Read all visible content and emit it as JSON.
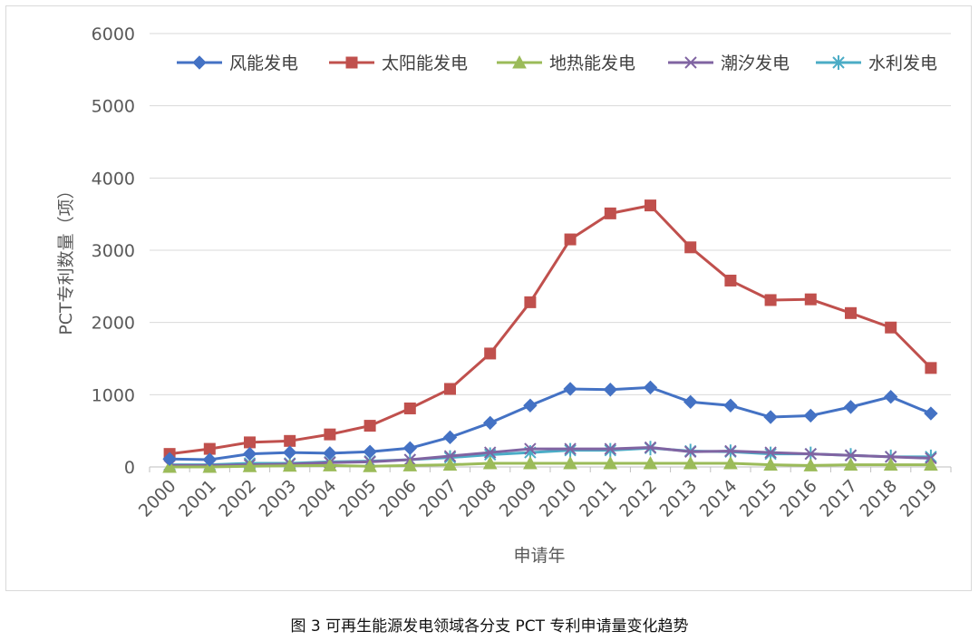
{
  "chart_data": {
    "type": "line",
    "title": "",
    "xlabel": "申请年",
    "ylabel": "PCT专利数量（项）",
    "ylim": [
      0,
      6000
    ],
    "yticks": [
      0,
      1000,
      2000,
      3000,
      4000,
      5000,
      6000
    ],
    "grid": true,
    "legend_position": "top",
    "categories": [
      "2000",
      "2001",
      "2002",
      "2003",
      "2004",
      "2005",
      "2006",
      "2007",
      "2008",
      "2009",
      "2010",
      "2011",
      "2012",
      "2013",
      "2014",
      "2015",
      "2016",
      "2017",
      "2018",
      "2019"
    ],
    "series": [
      {
        "name": "风能发电",
        "color": "#4472c4",
        "marker": "diamond",
        "values": [
          110,
          100,
          180,
          200,
          190,
          210,
          260,
          410,
          610,
          850,
          1080,
          1070,
          1100,
          900,
          850,
          690,
          710,
          830,
          970,
          740
        ]
      },
      {
        "name": "太阳能发电",
        "color": "#c0504d",
        "marker": "square",
        "values": [
          180,
          250,
          340,
          360,
          450,
          570,
          810,
          1080,
          1570,
          2280,
          3150,
          3510,
          3620,
          3040,
          2580,
          2310,
          2320,
          2130,
          1930,
          1370
        ]
      },
      {
        "name": "地热能发电",
        "color": "#9bbb59",
        "marker": "triangle",
        "values": [
          0,
          0,
          10,
          15,
          20,
          10,
          20,
          30,
          50,
          50,
          50,
          50,
          50,
          50,
          50,
          30,
          20,
          30,
          30,
          30
        ]
      },
      {
        "name": "潮汐发电",
        "color": "#8064a2",
        "marker": "x",
        "values": [
          20,
          20,
          30,
          40,
          60,
          70,
          100,
          150,
          200,
          250,
          250,
          250,
          270,
          210,
          220,
          200,
          180,
          160,
          140,
          120
        ]
      },
      {
        "name": "水利发电",
        "color": "#4bacc6",
        "marker": "star",
        "values": [
          30,
          30,
          50,
          50,
          70,
          80,
          100,
          130,
          170,
          200,
          230,
          230,
          260,
          220,
          210,
          180,
          180,
          160,
          140,
          140
        ]
      }
    ]
  },
  "caption": "图 3  可再生能源发电领域各分支 PCT 专利申请量变化趋势"
}
